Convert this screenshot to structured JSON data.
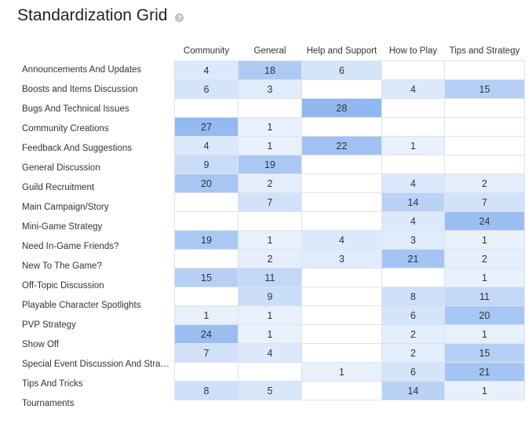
{
  "page": {
    "title": "Standardization Grid",
    "help_icon": "?"
  },
  "grid": {
    "columns": [
      "Community",
      "General",
      "Help and Support",
      "How to Play",
      "Tips and Strategy"
    ],
    "max_value": 28,
    "rows": [
      {
        "label": "Announcements And Updates",
        "values": [
          "4",
          "18",
          "6",
          "",
          ""
        ]
      },
      {
        "label": "Boosts and Items Discussion",
        "values": [
          "6",
          "3",
          "",
          "4",
          "15"
        ]
      },
      {
        "label": "Bugs And Technical Issues",
        "values": [
          "",
          "",
          "28",
          "",
          ""
        ]
      },
      {
        "label": "Community Creations",
        "values": [
          "27",
          "1",
          "",
          "",
          ""
        ]
      },
      {
        "label": "Feedback And Suggestions",
        "values": [
          "4",
          "1",
          "22",
          "1",
          ""
        ]
      },
      {
        "label": "General Discussion",
        "values": [
          "9",
          "19",
          "",
          "",
          ""
        ]
      },
      {
        "label": "Guild Recruitment",
        "values": [
          "20",
          "2",
          "",
          "4",
          "2"
        ]
      },
      {
        "label": "Main Campaign/Story",
        "values": [
          "",
          "7",
          "",
          "14",
          "7"
        ]
      },
      {
        "label": "Mini-Game Strategy",
        "values": [
          "",
          "",
          "",
          "4",
          "24"
        ]
      },
      {
        "label": "Need In-Game Friends?",
        "values": [
          "19",
          "1",
          "4",
          "3",
          "1"
        ]
      },
      {
        "label": "New To The Game?",
        "values": [
          "",
          "2",
          "3",
          "21",
          "2"
        ]
      },
      {
        "label": "Off-Topic Discussion",
        "values": [
          "15",
          "11",
          "",
          "",
          "1"
        ]
      },
      {
        "label": "Playable Character Spotlights",
        "values": [
          "",
          "9",
          "",
          "8",
          "11"
        ]
      },
      {
        "label": "PVP Strategy",
        "values": [
          "1",
          "1",
          "",
          "6",
          "20"
        ]
      },
      {
        "label": "Show Off",
        "values": [
          "24",
          "1",
          "",
          "2",
          "1"
        ]
      },
      {
        "label": "Special Event Discussion And Stra…",
        "values": [
          "7",
          "4",
          "",
          "2",
          "15"
        ]
      },
      {
        "label": "Tips And Tricks",
        "values": [
          "",
          "",
          "1",
          "6",
          "21"
        ]
      },
      {
        "label": "Tournaments",
        "values": [
          "8",
          "5",
          "",
          "14",
          "1"
        ]
      }
    ]
  },
  "colors": {
    "heat_low": "#eef4fd",
    "heat_high": "#8fb7f0",
    "empty_cell": "#ffffff",
    "border": "#dde3ea"
  }
}
